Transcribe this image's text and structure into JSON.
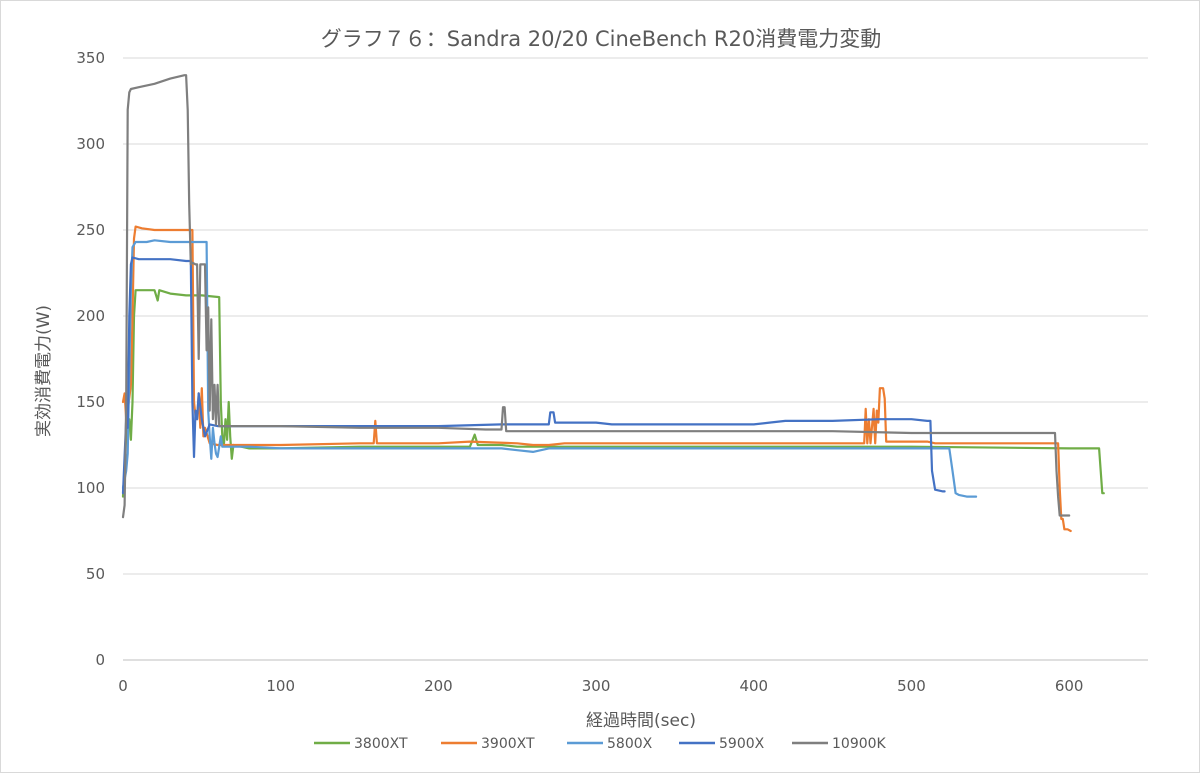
{
  "chart_data": {
    "type": "line",
    "title": "グラフ７６：Sandra 20/20 CineBench R20消費電力変動",
    "xlabel": "経過時間(sec)",
    "ylabel": "実効消費電力(W)",
    "xlim": [
      0,
      650
    ],
    "ylim": [
      0,
      350
    ],
    "x_ticks": [
      "0",
      "100",
      "200",
      "300",
      "400",
      "500",
      "600"
    ],
    "y_ticks": [
      "350",
      "300",
      "250",
      "200",
      "150",
      "100",
      "50",
      "0"
    ],
    "grid": "horizontal",
    "legend_position": "bottom",
    "series": [
      {
        "name": "3800XT",
        "color": "#70AD47",
        "points": [
          [
            0,
            95
          ],
          [
            2,
            130
          ],
          [
            4,
            140
          ],
          [
            5,
            128
          ],
          [
            6,
            150
          ],
          [
            7,
            200
          ],
          [
            8,
            215
          ],
          [
            15,
            215
          ],
          [
            20,
            215
          ],
          [
            22,
            209
          ],
          [
            23,
            215
          ],
          [
            30,
            213
          ],
          [
            40,
            212
          ],
          [
            50,
            212
          ],
          [
            61,
            211
          ],
          [
            62,
            150
          ],
          [
            63,
            130
          ],
          [
            64,
            125
          ],
          [
            65,
            140
          ],
          [
            66,
            128
          ],
          [
            67,
            150
          ],
          [
            68,
            130
          ],
          [
            69,
            117
          ],
          [
            70,
            125
          ],
          [
            75,
            124
          ],
          [
            80,
            123
          ],
          [
            100,
            123
          ],
          [
            150,
            124
          ],
          [
            200,
            124
          ],
          [
            220,
            124
          ],
          [
            223,
            131
          ],
          [
            225,
            125
          ],
          [
            240,
            125
          ],
          [
            250,
            124
          ],
          [
            300,
            124
          ],
          [
            400,
            124
          ],
          [
            500,
            124
          ],
          [
            600,
            123
          ],
          [
            619,
            123
          ],
          [
            620,
            110
          ],
          [
            621,
            97
          ],
          [
            622,
            97
          ]
        ]
      },
      {
        "name": "3900XT",
        "color": "#ED7D31",
        "points": [
          [
            0,
            150
          ],
          [
            1,
            155
          ],
          [
            2,
            140
          ],
          [
            3,
            145
          ],
          [
            5,
            160
          ],
          [
            6,
            200
          ],
          [
            7,
            245
          ],
          [
            8,
            252
          ],
          [
            12,
            251
          ],
          [
            20,
            250
          ],
          [
            30,
            250
          ],
          [
            40,
            250
          ],
          [
            44,
            250
          ],
          [
            45,
            150
          ],
          [
            46,
            142
          ],
          [
            47,
            140
          ],
          [
            48,
            155
          ],
          [
            49,
            135
          ],
          [
            50,
            158
          ],
          [
            51,
            130
          ],
          [
            52,
            135
          ],
          [
            55,
            126
          ],
          [
            60,
            125
          ],
          [
            70,
            125
          ],
          [
            80,
            125
          ],
          [
            100,
            125
          ],
          [
            150,
            126
          ],
          [
            159,
            126
          ],
          [
            160,
            139
          ],
          [
            161,
            126
          ],
          [
            200,
            126
          ],
          [
            220,
            127
          ],
          [
            250,
            126
          ],
          [
            260,
            125
          ],
          [
            270,
            125
          ],
          [
            280,
            126
          ],
          [
            300,
            126
          ],
          [
            400,
            126
          ],
          [
            450,
            126
          ],
          [
            470,
            126
          ],
          [
            471,
            146
          ],
          [
            472,
            126
          ],
          [
            473,
            140
          ],
          [
            474,
            126
          ],
          [
            476,
            146
          ],
          [
            477,
            126
          ],
          [
            478,
            145
          ],
          [
            479,
            138
          ],
          [
            480,
            158
          ],
          [
            482,
            158
          ],
          [
            483,
            152
          ],
          [
            484,
            127
          ],
          [
            500,
            127
          ],
          [
            510,
            127
          ],
          [
            515,
            126
          ],
          [
            550,
            126
          ],
          [
            580,
            126
          ],
          [
            593,
            126
          ],
          [
            594,
            100
          ],
          [
            595,
            82
          ],
          [
            596,
            82
          ],
          [
            597,
            76
          ],
          [
            599,
            76
          ],
          [
            601,
            75
          ]
        ]
      },
      {
        "name": "5800X",
        "color": "#5B9BD5",
        "points": [
          [
            0,
            100
          ],
          [
            2,
            110
          ],
          [
            3,
            120
          ],
          [
            5,
            215
          ],
          [
            6,
            240
          ],
          [
            8,
            243
          ],
          [
            15,
            243
          ],
          [
            20,
            244
          ],
          [
            30,
            243
          ],
          [
            50,
            243
          ],
          [
            53,
            243
          ],
          [
            54,
            145
          ],
          [
            55,
            130
          ],
          [
            56,
            117
          ],
          [
            57,
            135
          ],
          [
            58,
            126
          ],
          [
            59,
            120
          ],
          [
            60,
            118
          ],
          [
            62,
            130
          ],
          [
            63,
            124
          ],
          [
            70,
            124
          ],
          [
            80,
            124
          ],
          [
            100,
            123
          ],
          [
            150,
            123
          ],
          [
            200,
            123
          ],
          [
            240,
            123
          ],
          [
            250,
            122
          ],
          [
            260,
            121
          ],
          [
            270,
            123
          ],
          [
            300,
            123
          ],
          [
            400,
            123
          ],
          [
            500,
            123
          ],
          [
            520,
            123
          ],
          [
            524,
            123
          ],
          [
            526,
            110
          ],
          [
            528,
            97
          ],
          [
            530,
            96
          ],
          [
            535,
            95
          ],
          [
            541,
            95
          ]
        ]
      },
      {
        "name": "5900X",
        "color": "#4472C4",
        "points": [
          [
            0,
            97
          ],
          [
            2,
            140
          ],
          [
            3,
            135
          ],
          [
            4,
            200
          ],
          [
            5,
            230
          ],
          [
            6,
            234
          ],
          [
            10,
            233
          ],
          [
            20,
            233
          ],
          [
            30,
            233
          ],
          [
            40,
            232
          ],
          [
            43,
            232
          ],
          [
            44,
            150
          ],
          [
            45,
            118
          ],
          [
            46,
            145
          ],
          [
            47,
            140
          ],
          [
            48,
            155
          ],
          [
            50,
            140
          ],
          [
            52,
            130
          ],
          [
            55,
            137
          ],
          [
            60,
            136
          ],
          [
            70,
            136
          ],
          [
            80,
            136
          ],
          [
            100,
            136
          ],
          [
            150,
            136
          ],
          [
            180,
            136
          ],
          [
            200,
            136
          ],
          [
            240,
            137
          ],
          [
            250,
            137
          ],
          [
            260,
            137
          ],
          [
            270,
            137
          ],
          [
            271,
            144
          ],
          [
            273,
            144
          ],
          [
            274,
            138
          ],
          [
            290,
            138
          ],
          [
            300,
            138
          ],
          [
            310,
            137
          ],
          [
            400,
            137
          ],
          [
            410,
            138
          ],
          [
            420,
            139
          ],
          [
            450,
            139
          ],
          [
            480,
            140
          ],
          [
            500,
            140
          ],
          [
            510,
            139
          ],
          [
            512,
            139
          ],
          [
            513,
            110
          ],
          [
            515,
            99
          ],
          [
            520,
            98
          ],
          [
            521,
            98
          ]
        ]
      },
      {
        "name": "10900K",
        "color": "#7F7F7F",
        "points": [
          [
            0,
            83
          ],
          [
            1,
            90
          ],
          [
            2,
            150
          ],
          [
            3,
            320
          ],
          [
            4,
            330
          ],
          [
            5,
            332
          ],
          [
            10,
            333
          ],
          [
            20,
            335
          ],
          [
            30,
            338
          ],
          [
            39,
            340
          ],
          [
            40,
            340
          ],
          [
            41,
            320
          ],
          [
            42,
            265
          ],
          [
            43,
            230
          ],
          [
            44,
            231
          ],
          [
            46,
            230
          ],
          [
            47,
            230
          ],
          [
            48,
            175
          ],
          [
            49,
            230
          ],
          [
            52,
            230
          ],
          [
            53,
            180
          ],
          [
            54,
            205
          ],
          [
            55,
            145
          ],
          [
            56,
            198
          ],
          [
            57,
            140
          ],
          [
            58,
            160
          ],
          [
            59,
            137
          ],
          [
            60,
            160
          ],
          [
            61,
            136
          ],
          [
            70,
            136
          ],
          [
            100,
            136
          ],
          [
            150,
            135
          ],
          [
            200,
            135
          ],
          [
            230,
            134
          ],
          [
            240,
            134
          ],
          [
            241,
            147
          ],
          [
            242,
            147
          ],
          [
            243,
            133
          ],
          [
            250,
            133
          ],
          [
            300,
            133
          ],
          [
            400,
            133
          ],
          [
            450,
            133
          ],
          [
            500,
            132
          ],
          [
            550,
            132
          ],
          [
            590,
            132
          ],
          [
            591,
            132
          ],
          [
            592,
            110
          ],
          [
            593,
            95
          ],
          [
            594,
            84
          ],
          [
            596,
            84
          ],
          [
            600,
            84
          ]
        ]
      }
    ]
  }
}
